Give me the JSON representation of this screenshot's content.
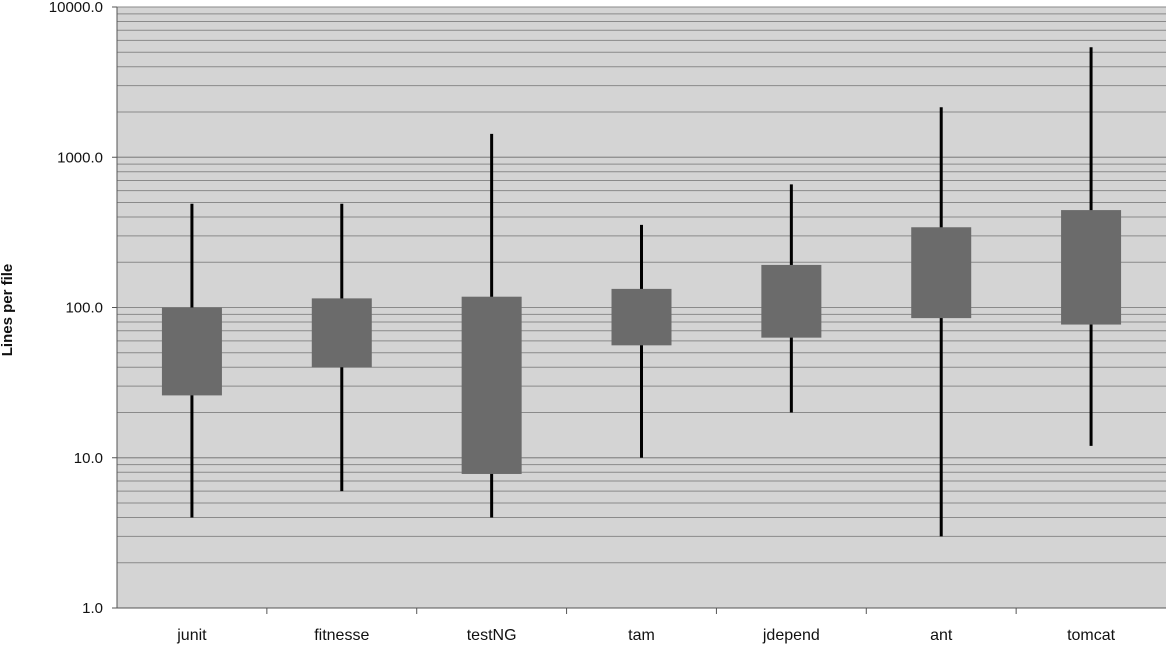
{
  "chart_data": {
    "type": "box",
    "title": "",
    "xlabel": "",
    "ylabel": "Lines per file",
    "y_scale": "log",
    "ylim": [
      1,
      10000
    ],
    "y_ticks": [
      {
        "value": 1,
        "label": "1.0"
      },
      {
        "value": 10,
        "label": "10.0"
      },
      {
        "value": 100,
        "label": "100.0"
      },
      {
        "value": 1000,
        "label": "1000.0"
      },
      {
        "value": 10000,
        "label": "10000.0"
      }
    ],
    "grid": true,
    "legend": "none",
    "colors": {
      "plot_background": "#d4d4d4",
      "gridline": "#8a8a8a",
      "box": "#6b6b6b",
      "whisker": "#000000"
    },
    "categories": [
      "junit",
      "fitnesse",
      "testNG",
      "tam",
      "jdepend",
      "ant",
      "tomcat"
    ],
    "boxes": [
      {
        "category": "junit",
        "min": 4,
        "q1": 26,
        "q3": 100,
        "max": 490
      },
      {
        "category": "fitnesse",
        "min": 6,
        "q1": 40,
        "q3": 115,
        "max": 490
      },
      {
        "category": "testNG",
        "min": 4,
        "q1": 7.8,
        "q3": 118,
        "max": 1430
      },
      {
        "category": "tam",
        "min": 10,
        "q1": 56,
        "q3": 133,
        "max": 355
      },
      {
        "category": "jdepend",
        "min": 20,
        "q1": 63,
        "q3": 192,
        "max": 660
      },
      {
        "category": "ant",
        "min": 3,
        "q1": 85,
        "q3": 342,
        "max": 2150
      },
      {
        "category": "tomcat",
        "min": 12,
        "q1": 77,
        "q3": 445,
        "max": 5400
      }
    ]
  }
}
